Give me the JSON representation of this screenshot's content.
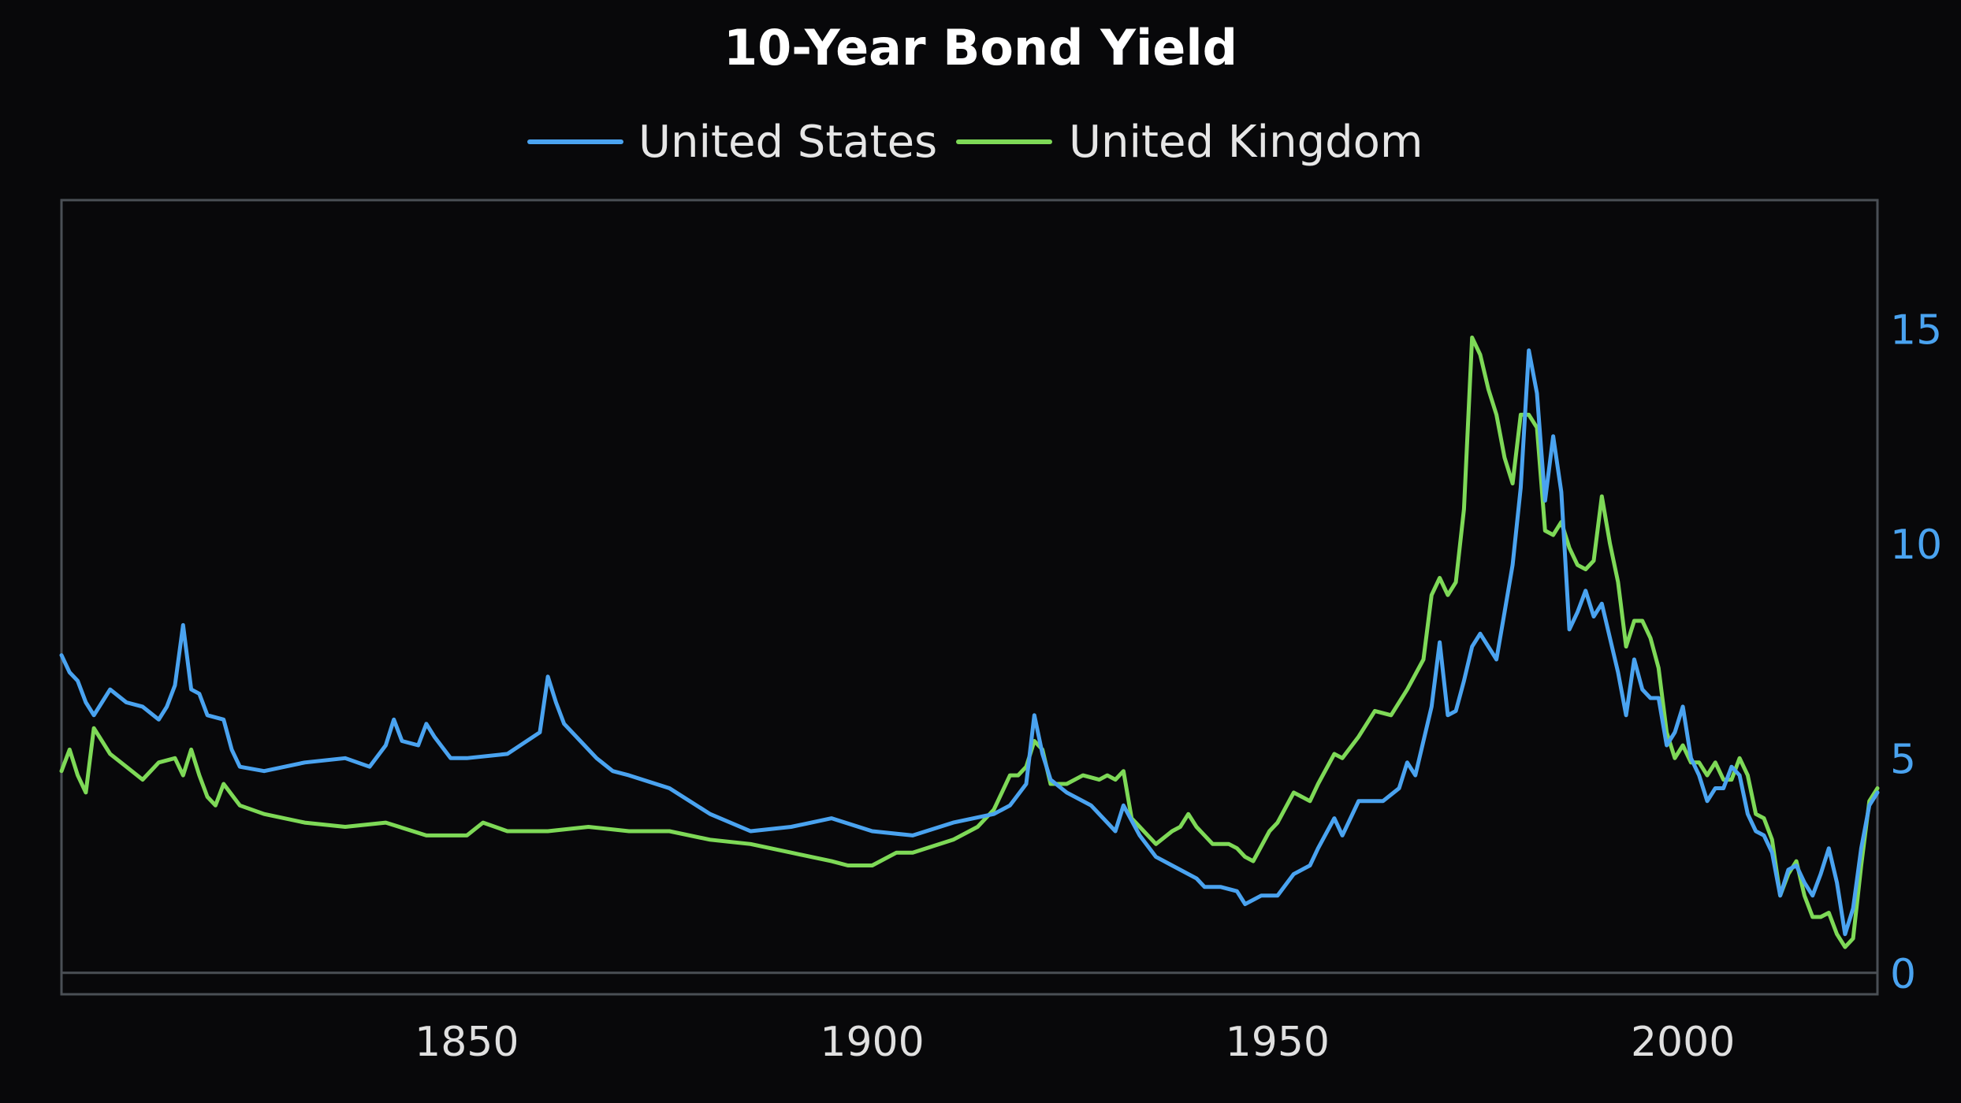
{
  "chart_data": {
    "type": "line",
    "title": "10-Year Bond Yield",
    "xlabel": "",
    "ylabel": "",
    "xlim": [
      1800,
      2024
    ],
    "ylim": [
      -0.5,
      18
    ],
    "y_axis_side": "right",
    "grid": false,
    "legend_position": "top-center",
    "background": "#08080a",
    "x_ticks": [
      {
        "value": 1850,
        "label": "1850"
      },
      {
        "value": 1900,
        "label": "1900"
      },
      {
        "value": 1950,
        "label": "1950"
      },
      {
        "value": 2000,
        "label": "2000"
      }
    ],
    "y_ticks": [
      {
        "value": 0,
        "label": "0"
      },
      {
        "value": 5,
        "label": "5"
      },
      {
        "value": 10,
        "label": "10"
      },
      {
        "value": 15,
        "label": "15"
      }
    ],
    "series": [
      {
        "name": "United States",
        "color": "#4aa3f0",
        "x": [
          1800,
          1801,
          1802,
          1803,
          1804,
          1806,
          1808,
          1810,
          1812,
          1813,
          1814,
          1815,
          1816,
          1817,
          1818,
          1820,
          1821,
          1822,
          1825,
          1830,
          1835,
          1838,
          1840,
          1841,
          1842,
          1844,
          1845,
          1846,
          1848,
          1850,
          1855,
          1859,
          1860,
          1861,
          1862,
          1864,
          1866,
          1868,
          1870,
          1875,
          1880,
          1885,
          1890,
          1895,
          1900,
          1905,
          1910,
          1915,
          1917,
          1919,
          1920,
          1921,
          1922,
          1924,
          1927,
          1929,
          1930,
          1931,
          1933,
          1935,
          1937,
          1940,
          1941,
          1943,
          1945,
          1946,
          1948,
          1950,
          1952,
          1954,
          1955,
          1957,
          1958,
          1960,
          1963,
          1965,
          1966,
          1967,
          1969,
          1970,
          1971,
          1972,
          1973,
          1974,
          1975,
          1976,
          1977,
          1978,
          1979,
          1980,
          1981,
          1982,
          1983,
          1984,
          1985,
          1986,
          1987,
          1988,
          1989,
          1990,
          1991,
          1992,
          1993,
          1994,
          1995,
          1996,
          1997,
          1998,
          1999,
          2000,
          2001,
          2002,
          2003,
          2004,
          2005,
          2006,
          2007,
          2008,
          2009,
          2010,
          2011,
          2012,
          2013,
          2014,
          2015,
          2016,
          2017,
          2018,
          2019,
          2020,
          2021,
          2022,
          2023,
          2024
        ],
        "values": [
          7.4,
          7.0,
          6.8,
          6.3,
          6.0,
          6.6,
          6.3,
          6.2,
          5.9,
          6.2,
          6.7,
          8.1,
          6.6,
          6.5,
          6.0,
          5.9,
          5.2,
          4.8,
          4.7,
          4.9,
          5.0,
          4.8,
          5.3,
          5.9,
          5.4,
          5.3,
          5.8,
          5.5,
          5.0,
          5.0,
          5.1,
          5.6,
          6.9,
          6.3,
          5.8,
          5.4,
          5.0,
          4.7,
          4.6,
          4.3,
          3.7,
          3.3,
          3.4,
          3.6,
          3.3,
          3.2,
          3.5,
          3.7,
          3.9,
          4.4,
          6.0,
          5.1,
          4.5,
          4.2,
          3.9,
          3.5,
          3.3,
          3.9,
          3.2,
          2.7,
          2.5,
          2.2,
          2.0,
          2.0,
          1.9,
          1.6,
          1.8,
          1.8,
          2.3,
          2.5,
          2.9,
          3.6,
          3.2,
          4.0,
          4.0,
          4.3,
          4.9,
          4.6,
          6.2,
          7.7,
          6.0,
          6.1,
          6.8,
          7.6,
          7.9,
          7.6,
          7.3,
          8.4,
          9.5,
          11.3,
          14.5,
          13.5,
          11.0,
          12.5,
          11.2,
          8.0,
          8.4,
          8.9,
          8.3,
          8.6,
          7.8,
          7.0,
          6.0,
          7.3,
          6.6,
          6.4,
          6.4,
          5.3,
          5.6,
          6.2,
          5.0,
          4.6,
          4.0,
          4.3,
          4.3,
          4.8,
          4.6,
          3.7,
          3.3,
          3.2,
          2.8,
          1.8,
          2.4,
          2.5,
          2.1,
          1.8,
          2.3,
          2.9,
          2.1,
          0.9,
          1.5,
          2.9,
          3.9,
          4.2
        ]
      },
      {
        "name": "United Kingdom",
        "color": "#7ed957",
        "x": [
          1800,
          1801,
          1802,
          1803,
          1804,
          1806,
          1808,
          1810,
          1812,
          1814,
          1815,
          1816,
          1817,
          1818,
          1819,
          1820,
          1822,
          1825,
          1830,
          1835,
          1840,
          1845,
          1850,
          1852,
          1855,
          1860,
          1865,
          1870,
          1875,
          1880,
          1885,
          1890,
          1895,
          1897,
          1900,
          1903,
          1905,
          1910,
          1913,
          1915,
          1917,
          1918,
          1919,
          1920,
          1921,
          1922,
          1924,
          1926,
          1928,
          1929,
          1930,
          1931,
          1932,
          1933,
          1935,
          1937,
          1938,
          1939,
          1940,
          1942,
          1944,
          1945,
          1946,
          1947,
          1949,
          1950,
          1952,
          1954,
          1955,
          1957,
          1958,
          1960,
          1962,
          1964,
          1966,
          1968,
          1969,
          1970,
          1971,
          1972,
          1973,
          1974,
          1975,
          1976,
          1977,
          1978,
          1979,
          1980,
          1981,
          1982,
          1983,
          1984,
          1985,
          1986,
          1987,
          1988,
          1989,
          1990,
          1991,
          1992,
          1993,
          1994,
          1995,
          1996,
          1997,
          1998,
          1999,
          2000,
          2001,
          2002,
          2003,
          2004,
          2005,
          2006,
          2007,
          2008,
          2009,
          2010,
          2011,
          2012,
          2013,
          2014,
          2015,
          2016,
          2017,
          2018,
          2019,
          2020,
          2021,
          2022,
          2023,
          2024
        ],
        "values": [
          4.7,
          5.2,
          4.6,
          4.2,
          5.7,
          5.1,
          4.8,
          4.5,
          4.9,
          5.0,
          4.6,
          5.2,
          4.6,
          4.1,
          3.9,
          4.4,
          3.9,
          3.7,
          3.5,
          3.4,
          3.5,
          3.2,
          3.2,
          3.5,
          3.3,
          3.3,
          3.4,
          3.3,
          3.3,
          3.1,
          3.0,
          2.8,
          2.6,
          2.5,
          2.5,
          2.8,
          2.8,
          3.1,
          3.4,
          3.8,
          4.6,
          4.6,
          4.8,
          5.4,
          5.2,
          4.4,
          4.4,
          4.6,
          4.5,
          4.6,
          4.5,
          4.7,
          3.6,
          3.4,
          3.0,
          3.3,
          3.4,
          3.7,
          3.4,
          3.0,
          3.0,
          2.9,
          2.7,
          2.6,
          3.3,
          3.5,
          4.2,
          4.0,
          4.4,
          5.1,
          5.0,
          5.5,
          6.1,
          6.0,
          6.6,
          7.3,
          8.8,
          9.2,
          8.8,
          9.1,
          10.8,
          14.8,
          14.4,
          13.6,
          13.0,
          12.0,
          11.4,
          13.0,
          13.0,
          12.7,
          10.3,
          10.2,
          10.5,
          9.9,
          9.5,
          9.4,
          9.6,
          11.1,
          10.0,
          9.1,
          7.6,
          8.2,
          8.2,
          7.8,
          7.1,
          5.6,
          5.0,
          5.3,
          4.9,
          4.9,
          4.6,
          4.9,
          4.5,
          4.5,
          5.0,
          4.6,
          3.7,
          3.6,
          3.1,
          1.8,
          2.3,
          2.6,
          1.8,
          1.3,
          1.3,
          1.4,
          0.9,
          0.6,
          0.8,
          2.5,
          4.0,
          4.3
        ]
      }
    ]
  }
}
